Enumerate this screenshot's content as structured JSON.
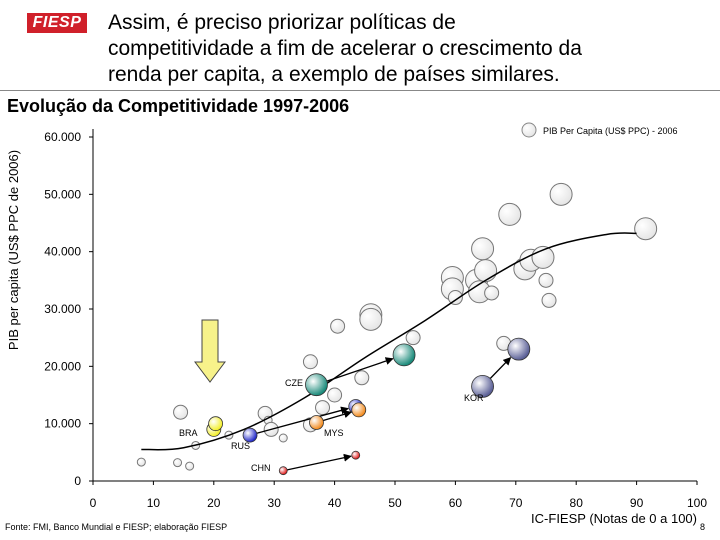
{
  "header": {
    "logo_text": "FIESP",
    "headline_lines": [
      "Assim, é preciso priorizar políticas de",
      "competitividade a fim de acelerar o crescimento da",
      "renda per capita, a exemplo de países similares."
    ]
  },
  "footer": {
    "source": "Fonte: FMI, Banco Mundial e FIESP; elaboração FIESP",
    "page": "8"
  },
  "colors": {
    "grey_bubble": "#e6e6e6",
    "BRA": "#f2ee2a",
    "RUS": "#1f26c9",
    "MYS": "#f28a1d",
    "CZE": "#1a8a7a",
    "KOR": "#5a5f96",
    "CHN": "#e01616",
    "highlight_arrow": "#f7f28a"
  },
  "chart_data": {
    "type": "scatter",
    "title": "Evolução da Competitividade 1997-2006",
    "xlabel": "IC-FIESP (Notas de 0 a 100)",
    "ylabel": "PIB per capita (US$ PPC de 2006)",
    "xlim": [
      0,
      100
    ],
    "ylim": [
      0,
      60000
    ],
    "x_ticks": [
      "0",
      "10",
      "20",
      "30",
      "40",
      "50",
      "60",
      "70",
      "80",
      "90",
      "100"
    ],
    "y_ticks": [
      "0",
      "10.000",
      "20.000",
      "30.000",
      "40.000",
      "50.000",
      "60.000"
    ],
    "legend": "PIB Per Capita (US$ PPC) - 2006",
    "legend_position": "top-right",
    "grid": false,
    "trend_curve": [
      [
        8,
        5500
      ],
      [
        15,
        5800
      ],
      [
        25,
        9000
      ],
      [
        35,
        14500
      ],
      [
        45,
        21500
      ],
      [
        55,
        28000
      ],
      [
        65,
        35000
      ],
      [
        75,
        40500
      ],
      [
        85,
        43000
      ],
      [
        90,
        43200
      ]
    ],
    "other_countries": [
      {
        "x": 8,
        "y": 3300,
        "size": 1
      },
      {
        "x": 14,
        "y": 3200,
        "size": 1
      },
      {
        "x": 16,
        "y": 2600,
        "size": 1
      },
      {
        "x": 17,
        "y": 6200,
        "size": 1
      },
      {
        "x": 14.5,
        "y": 12000,
        "size": 2
      },
      {
        "x": 22.5,
        "y": 8000,
        "size": 1
      },
      {
        "x": 28.5,
        "y": 11800,
        "size": 2
      },
      {
        "x": 29,
        "y": 10600,
        "size": 1
      },
      {
        "x": 29.5,
        "y": 9000,
        "size": 2
      },
      {
        "x": 31.5,
        "y": 7500,
        "size": 1
      },
      {
        "x": 36,
        "y": 9800,
        "size": 2
      },
      {
        "x": 38,
        "y": 12800,
        "size": 2
      },
      {
        "x": 40,
        "y": 15000,
        "size": 2
      },
      {
        "x": 36,
        "y": 20800,
        "size": 2
      },
      {
        "x": 44.5,
        "y": 18000,
        "size": 2
      },
      {
        "x": 40.5,
        "y": 27000,
        "size": 2
      },
      {
        "x": 46,
        "y": 29000,
        "size": 3
      },
      {
        "x": 46,
        "y": 28200,
        "size": 3
      },
      {
        "x": 53,
        "y": 25000,
        "size": 2
      },
      {
        "x": 59.5,
        "y": 35500,
        "size": 3
      },
      {
        "x": 59.5,
        "y": 33500,
        "size": 3
      },
      {
        "x": 60,
        "y": 32000,
        "size": 2
      },
      {
        "x": 63.5,
        "y": 35000,
        "size": 3
      },
      {
        "x": 64,
        "y": 33000,
        "size": 3
      },
      {
        "x": 64.5,
        "y": 40500,
        "size": 3
      },
      {
        "x": 65,
        "y": 36700,
        "size": 3
      },
      {
        "x": 66,
        "y": 32800,
        "size": 2
      },
      {
        "x": 68,
        "y": 24000,
        "size": 2
      },
      {
        "x": 69,
        "y": 46500,
        "size": 3
      },
      {
        "x": 71.5,
        "y": 37000,
        "size": 3
      },
      {
        "x": 72.5,
        "y": 38500,
        "size": 3
      },
      {
        "x": 74.5,
        "y": 39000,
        "size": 3
      },
      {
        "x": 75,
        "y": 35000,
        "size": 2
      },
      {
        "x": 75.5,
        "y": 31500,
        "size": 2
      },
      {
        "x": 77.5,
        "y": 50000,
        "size": 3
      },
      {
        "x": 91.5,
        "y": 44000,
        "size": 3
      }
    ],
    "countries": [
      {
        "name": "BRA",
        "from": [
          20,
          9000
        ],
        "to": [
          20.3,
          10000
        ],
        "size_from": 2,
        "size_to": 2
      },
      {
        "name": "RUS",
        "from": [
          26,
          8000
        ],
        "to": [
          43.5,
          13000
        ],
        "size_from": 2,
        "size_to": 2
      },
      {
        "name": "MYS",
        "from": [
          37,
          10200
        ],
        "to": [
          44,
          12400
        ],
        "size_from": 2,
        "size_to": 2
      },
      {
        "name": "CZE",
        "from": [
          37,
          16800
        ],
        "to": [
          51.5,
          22000
        ],
        "size_from": 3,
        "size_to": 3
      },
      {
        "name": "KOR",
        "from": [
          64.5,
          16500
        ],
        "to": [
          70.5,
          23000
        ],
        "size_from": 3,
        "size_to": 3
      },
      {
        "name": "CHN",
        "from": [
          31.5,
          1800
        ],
        "to": [
          43.5,
          4500
        ],
        "size_from": 1,
        "size_to": 1
      }
    ]
  }
}
